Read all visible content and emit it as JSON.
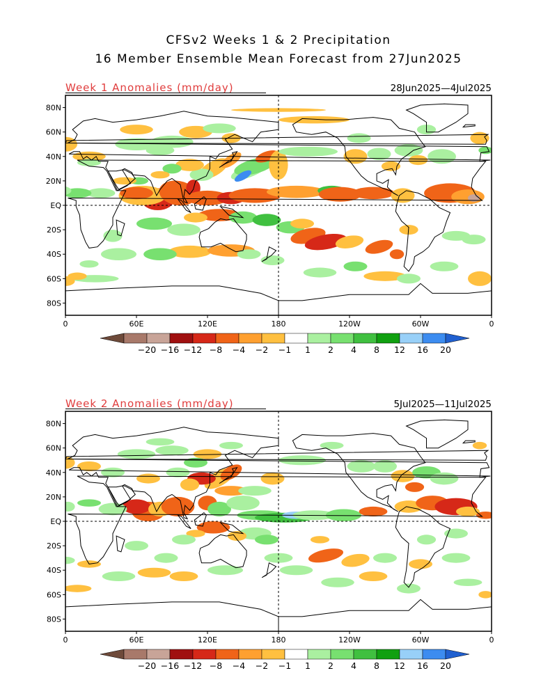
{
  "header": {
    "title_line1": "CFSv2 Weeks 1 & 2 Precipitation",
    "title_line2": "16 Member Ensemble Mean Forecast from 27Jun2025"
  },
  "panels": [
    {
      "title": "Week 1 Anomalies (mm/day)",
      "date_range": "28Jun2025—4Jul2025",
      "lat_labels": [
        "80N",
        "60N",
        "40N",
        "20N",
        "EQ",
        "20S",
        "40S",
        "60S",
        "80S"
      ],
      "lon_labels": [
        "0",
        "60E",
        "120E",
        "180",
        "120W",
        "60W",
        "0"
      ]
    },
    {
      "title": "Week 2 Anomalies (mm/day)",
      "date_range": "5Jul2025—11Jul2025",
      "lat_labels": [
        "80N",
        "60N",
        "40N",
        "20N",
        "EQ",
        "20S",
        "40S",
        "60S",
        "80S"
      ],
      "lon_labels": [
        "0",
        "60E",
        "120E",
        "180",
        "120W",
        "60W",
        "0"
      ]
    }
  ],
  "colorbar": {
    "labels": [
      "−20",
      "−16",
      "−12",
      "−8",
      "−4",
      "−2",
      "−1",
      "1",
      "2",
      "4",
      "8",
      "12",
      "16",
      "20"
    ],
    "colors": [
      "#6e4a3a",
      "#a8796a",
      "#c8a498",
      "#a01010",
      "#d62818",
      "#f06418",
      "#ffa030",
      "#ffc040",
      "#ffffff",
      "#aaf0a0",
      "#78e070",
      "#40c040",
      "#10a010",
      "#98d0f8",
      "#3c8cf0",
      "#2060d0"
    ]
  }
}
